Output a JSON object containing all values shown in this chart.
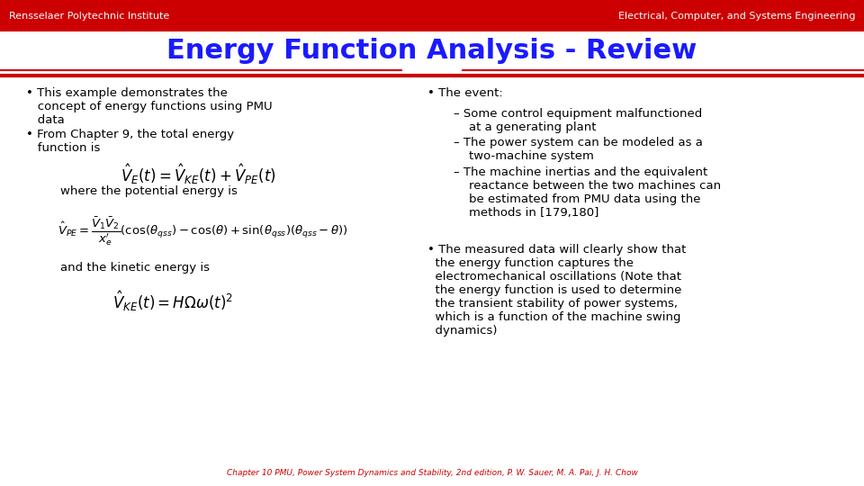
{
  "header_bg": "#cc0000",
  "header_left": "Rensselaer Polytechnic Institute",
  "header_right": "Electrical, Computer, and Systems Engineering",
  "header_text_color": "#ffffff",
  "title": "Energy Function Analysis - Review",
  "title_color": "#1a1aff",
  "bg_color": "#ffffff",
  "divider_color": "#cc0000",
  "footer_text": "Chapter 10 PMU, Power System Dynamics and Stability, 2nd edition, P. W. Sauer, M. A. Pai, J. H. Chow",
  "footer_color": "#cc0000"
}
